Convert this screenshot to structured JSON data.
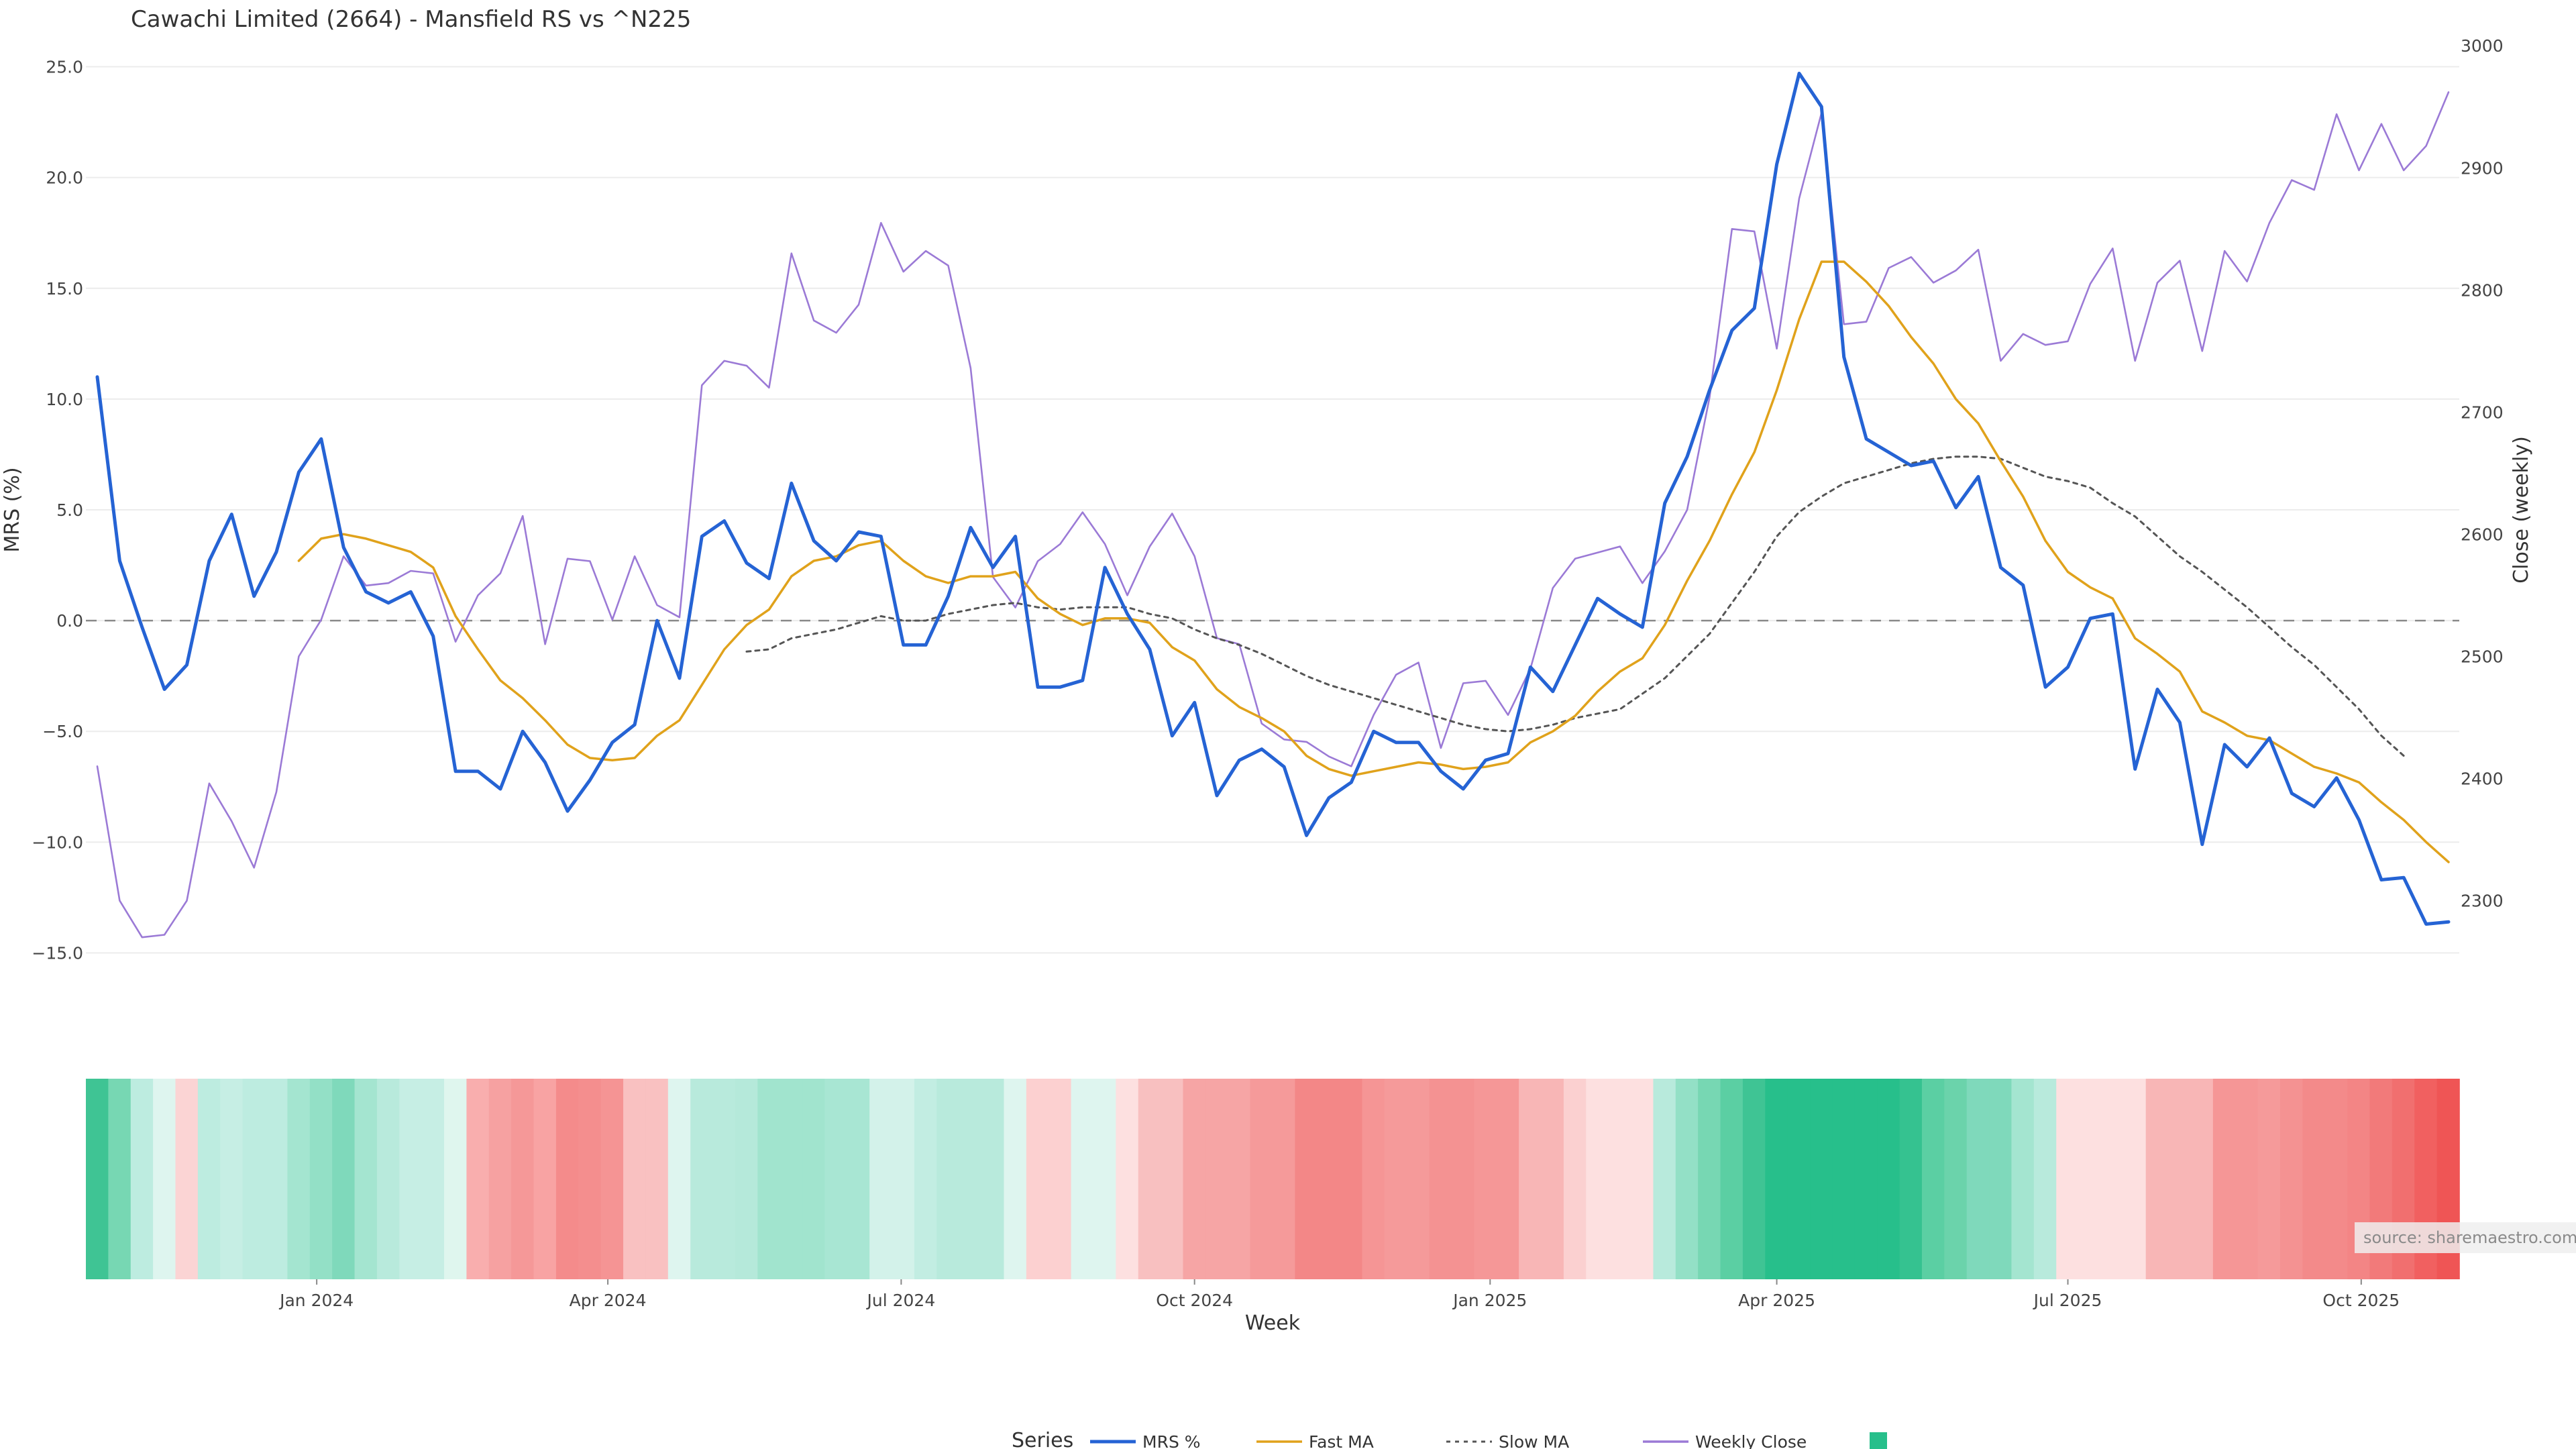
{
  "chart_data": {
    "type": "line",
    "title": "Cawachi Limited (2664) - Mansfield RS vs ^N225",
    "xlabel": "Week",
    "ylabel_left": "MRS (%)",
    "ylabel_right": "Close (weekly)",
    "ylim_left": [
      -16.5,
      26.5
    ],
    "yticks_left": [
      25.0,
      20.0,
      15.0,
      10.0,
      5.0,
      0.0,
      -5.0,
      -10.0,
      -15.0
    ],
    "ytick_labels_left": [
      "25.0",
      "20.0",
      "15.0",
      "10.0",
      "5.0",
      "0.0",
      "−5.0",
      "−10.0",
      "−15.0"
    ],
    "ylim_right": [
      2230,
      3010
    ],
    "yticks_right": [
      3000,
      2900,
      2800,
      2700,
      2600,
      2500,
      2400,
      2300
    ],
    "ytick_labels_right": [
      "3000",
      "2900",
      "2800",
      "2700",
      "2600",
      "2500",
      "2400",
      "2300"
    ],
    "x_ticks": [
      {
        "label": "Jan 2024",
        "index": 9.8
      },
      {
        "label": "Apr 2024",
        "index": 22.8
      },
      {
        "label": "Jul 2024",
        "index": 35.9
      },
      {
        "label": "Oct 2024",
        "index": 49.0
      },
      {
        "label": "Jan 2025",
        "index": 62.2
      },
      {
        "label": "Apr 2025",
        "index": 75.0
      },
      {
        "label": "Jul 2025",
        "index": 88.0
      },
      {
        "label": "Oct 2025",
        "index": 101.1
      }
    ],
    "zero_line": 0,
    "grid": true,
    "legend_position": "bottom-center",
    "legend_title": "Series",
    "source_text": "source: sharemaestro.com",
    "series": [
      {
        "name": "MRS %",
        "axis": "left",
        "color": "#2563d4",
        "style": "solid",
        "values": [
          11.0,
          2.7,
          -0.3,
          -3.1,
          -2.0,
          2.7,
          4.8,
          1.1,
          3.1,
          6.7,
          8.2,
          3.3,
          1.3,
          0.8,
          1.3,
          -0.7,
          -6.8,
          -6.8,
          -7.6,
          -5.0,
          -6.4,
          -8.6,
          -7.2,
          -5.5,
          -4.7,
          0.0,
          -2.6,
          3.8,
          4.5,
          2.6,
          1.9,
          6.2,
          3.6,
          2.7,
          4.0,
          3.8,
          -1.1,
          -1.1,
          1.1,
          4.2,
          2.4,
          3.8,
          -3.0,
          -3.0,
          -2.7,
          2.4,
          0.3,
          -1.3,
          -5.2,
          -3.7,
          -7.9,
          -6.3,
          -5.8,
          -6.6,
          -9.7,
          -8.0,
          -7.3,
          -5.0,
          -5.5,
          -5.5,
          -6.8,
          -7.6,
          -6.3,
          -6.0,
          -2.1,
          -3.2,
          -1.1,
          1.0,
          0.3,
          -0.3,
          5.3,
          7.4,
          10.4,
          13.1,
          14.1,
          20.6,
          24.7,
          23.2,
          11.9,
          8.2,
          7.6,
          7.0,
          7.2,
          5.1,
          6.5,
          2.4,
          1.6,
          -3.0,
          -2.1,
          0.1,
          0.3,
          -6.7,
          -3.1,
          -4.6,
          -10.1,
          -5.6,
          -6.6,
          -5.3,
          -7.8,
          -8.4,
          -7.1,
          -9.0,
          -11.7,
          -11.6,
          -13.7,
          -13.6
        ]
      },
      {
        "name": "Fast MA",
        "axis": "left",
        "color": "#e0a21b",
        "style": "solid",
        "values": [
          null,
          null,
          null,
          null,
          null,
          null,
          null,
          null,
          null,
          2.7,
          3.7,
          3.9,
          3.7,
          3.4,
          3.1,
          2.4,
          0.2,
          -1.3,
          -2.7,
          -3.5,
          -4.5,
          -5.6,
          -6.2,
          -6.3,
          -6.2,
          -5.2,
          -4.5,
          -2.9,
          -1.3,
          -0.2,
          0.5,
          2.0,
          2.7,
          2.9,
          3.4,
          3.6,
          2.7,
          2.0,
          1.7,
          2.0,
          2.0,
          2.2,
          1.0,
          0.3,
          -0.2,
          0.1,
          0.1,
          -0.1,
          -1.2,
          -1.8,
          -3.1,
          -3.9,
          -4.4,
          -5.0,
          -6.1,
          -6.7,
          -7.0,
          -6.8,
          -6.6,
          -6.4,
          -6.5,
          -6.7,
          -6.6,
          -6.4,
          -5.5,
          -5.0,
          -4.3,
          -3.2,
          -2.3,
          -1.7,
          -0.2,
          1.8,
          3.6,
          5.7,
          7.6,
          10.4,
          13.6,
          16.2,
          16.2,
          15.3,
          14.2,
          12.8,
          11.6,
          10.0,
          8.9,
          7.2,
          5.6,
          3.6,
          2.2,
          1.5,
          1.0,
          -0.8,
          -1.5,
          -2.3,
          -4.1,
          -4.6,
          -5.2,
          -5.4,
          -6.0,
          -6.6,
          -6.9,
          -7.3,
          -8.2,
          -9.0,
          -10.0,
          -10.9
        ]
      },
      {
        "name": "Slow MA",
        "axis": "left",
        "color": "#555555",
        "style": "dotted",
        "values": [
          null,
          null,
          null,
          null,
          null,
          null,
          null,
          null,
          null,
          null,
          null,
          null,
          null,
          null,
          null,
          null,
          null,
          null,
          null,
          null,
          null,
          null,
          null,
          null,
          null,
          null,
          null,
          null,
          null,
          -1.4,
          -1.3,
          -0.8,
          -0.6,
          -0.4,
          -0.1,
          0.2,
          0.0,
          0.0,
          0.3,
          0.5,
          0.7,
          0.8,
          0.6,
          0.5,
          0.6,
          0.6,
          0.6,
          0.3,
          0.1,
          -0.4,
          -0.8,
          -1.1,
          -1.5,
          -2.0,
          -2.5,
          -2.9,
          -3.2,
          -3.5,
          -3.8,
          -4.1,
          -4.4,
          -4.7,
          -4.9,
          -5.0,
          -4.9,
          -4.7,
          -4.4,
          -4.2,
          -4.0,
          -3.3,
          -2.6,
          -1.6,
          -0.6,
          0.8,
          2.2,
          3.8,
          4.9,
          5.6,
          6.2,
          6.5,
          6.8,
          7.1,
          7.3,
          7.4,
          7.4,
          7.3,
          6.9,
          6.5,
          6.3,
          6.0,
          5.3,
          4.7,
          3.8,
          2.9,
          2.2,
          1.4,
          0.6,
          -0.3,
          -1.2,
          -2.0,
          -3.0,
          -4.0,
          -5.2,
          -6.1
        ]
      },
      {
        "name": "Weekly Close",
        "axis": "right",
        "color": "#9b7ad6",
        "style": "solid",
        "values": [
          2410,
          2300,
          2270,
          2272,
          2300,
          2396,
          2365,
          2327,
          2389,
          2500,
          2530,
          2582,
          2558,
          2560,
          2570,
          2568,
          2512,
          2550,
          2568,
          2615,
          2510,
          2580,
          2578,
          2530,
          2582,
          2542,
          2532,
          2722,
          2742,
          2738,
          2720,
          2830,
          2775,
          2765,
          2788,
          2855,
          2815,
          2832,
          2820,
          2736,
          2565,
          2540,
          2578,
          2592,
          2618,
          2592,
          2550,
          2590,
          2617,
          2582,
          2515,
          2510,
          2445,
          2432,
          2430,
          2418,
          2410,
          2452,
          2485,
          2495,
          2425,
          2478,
          2480,
          2452,
          2490,
          2556,
          2580,
          2585,
          2590,
          2560,
          2586,
          2620,
          2712,
          2850,
          2848,
          2752,
          2875,
          2945,
          2772,
          2774,
          2818,
          2827,
          2806,
          2816,
          2833,
          2742,
          2764,
          2755,
          2758,
          2805,
          2834,
          2742,
          2806,
          2824,
          2750,
          2832,
          2807,
          2855,
          2890,
          2882,
          2944,
          2898,
          2936,
          2898,
          2918,
          2962
        ]
      }
    ],
    "heatmap_strip": {
      "note_key": "strip colors derived from MRS series",
      "colors": [
        "#3fc494",
        "#77d7b3",
        "#bdece0",
        "#def5ef",
        "#fbd4d4",
        "#bdece0",
        "#c6eee4",
        "#bdece0",
        "#bdece0",
        "#a4e5d0",
        "#93e0c6",
        "#7fd9bb",
        "#a4e5d0",
        "#b8eadc",
        "#c6eee4",
        "#c6eee4",
        "#dff6ee",
        "#f9aeae",
        "#f6a1a1",
        "#f59898",
        "#f8a3a3",
        "#f48b8b",
        "#f48e8e",
        "#f59494",
        "#f9c1c1",
        "#f9c1c1",
        "#def5ef",
        "#b8eadc",
        "#b8eadc",
        "#b5e9da",
        "#a1e4ce",
        "#a1e4ce",
        "#a1e4ce",
        "#a8e6d3",
        "#a8e6d3",
        "#d3f2ea",
        "#d3f2ea",
        "#c2ede2",
        "#b8eadc",
        "#b8eadc",
        "#b8eadc",
        "#def5ef",
        "#fcd0d0",
        "#fcd0d0",
        "#def5ef",
        "#def5ef",
        "#fde0e0",
        "#f8c0c0",
        "#f8c0c0",
        "#f6a5a5",
        "#f6a5a5",
        "#f6a5a5",
        "#f59a9a",
        "#f59a9a",
        "#f38787",
        "#f38787",
        "#f38787",
        "#f59595",
        "#f59a9a",
        "#f59a9a",
        "#f49292",
        "#f49292",
        "#f59797",
        "#f59797",
        "#f8b6b6",
        "#f8b6b6",
        "#fbd0d0",
        "#fde0e0",
        "#fde0e0",
        "#fde0e0",
        "#b8eadc",
        "#93e0c6",
        "#77d7b3",
        "#5bcfa3",
        "#3fc494",
        "#27bf8b",
        "#27bf8b",
        "#27bf8b",
        "#27bf8b",
        "#27bf8b",
        "#27bf8b",
        "#35c290",
        "#5bcfa3",
        "#6bd3ab",
        "#7fd9bb",
        "#7fd9bb",
        "#a4e5d0",
        "#b8eadc",
        "#fde0e0",
        "#fde0e0",
        "#fde0e0",
        "#fde0e0",
        "#f8b6b6",
        "#f8b6b6",
        "#f8b6b6",
        "#f59696",
        "#f59696",
        "#f59a9a",
        "#f49292",
        "#f38a8a",
        "#f38a8a",
        "#f38585",
        "#f27a7a",
        "#f16f6f",
        "#f16060",
        "#ef5555"
      ]
    }
  }
}
